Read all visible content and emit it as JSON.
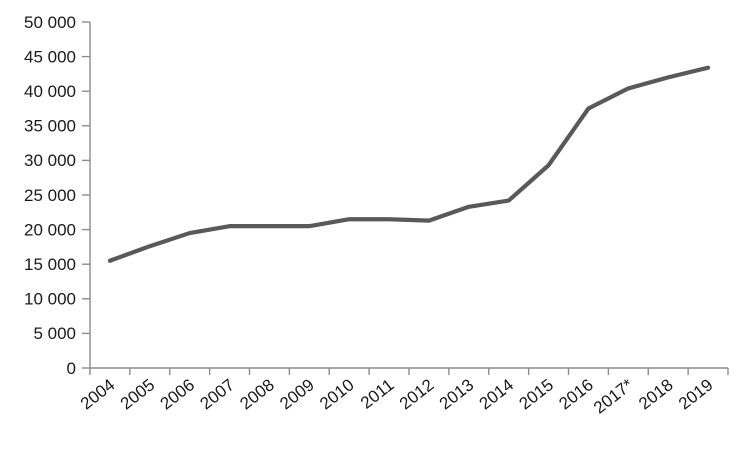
{
  "chart_data": {
    "type": "line",
    "title": "",
    "xlabel": "",
    "ylabel": "",
    "categories": [
      "2004",
      "2005",
      "2006",
      "2007",
      "2008",
      "2009",
      "2010",
      "2011",
      "2012",
      "2013",
      "2014",
      "2015",
      "2016",
      "2017*",
      "2018",
      "2019"
    ],
    "values": [
      15500,
      17600,
      19500,
      20500,
      20500,
      20500,
      21500,
      21500,
      21300,
      23300,
      24200,
      29300,
      37500,
      40400,
      42000,
      43400
    ],
    "ylim": [
      0,
      50000
    ],
    "ytick_step": 5000,
    "ytick_labels": [
      "0",
      "5 000",
      "10 000",
      "15 000",
      "20 000",
      "25 000",
      "30 000",
      "35 000",
      "40 000",
      "45 000",
      "50 000"
    ],
    "grid": false,
    "legend": "none",
    "x_label_rotation_deg": -38,
    "colors": {
      "series": "#595959",
      "axis": "#8c8c8c",
      "tick_text": "#1a1a1a",
      "background": "#ffffff"
    }
  }
}
